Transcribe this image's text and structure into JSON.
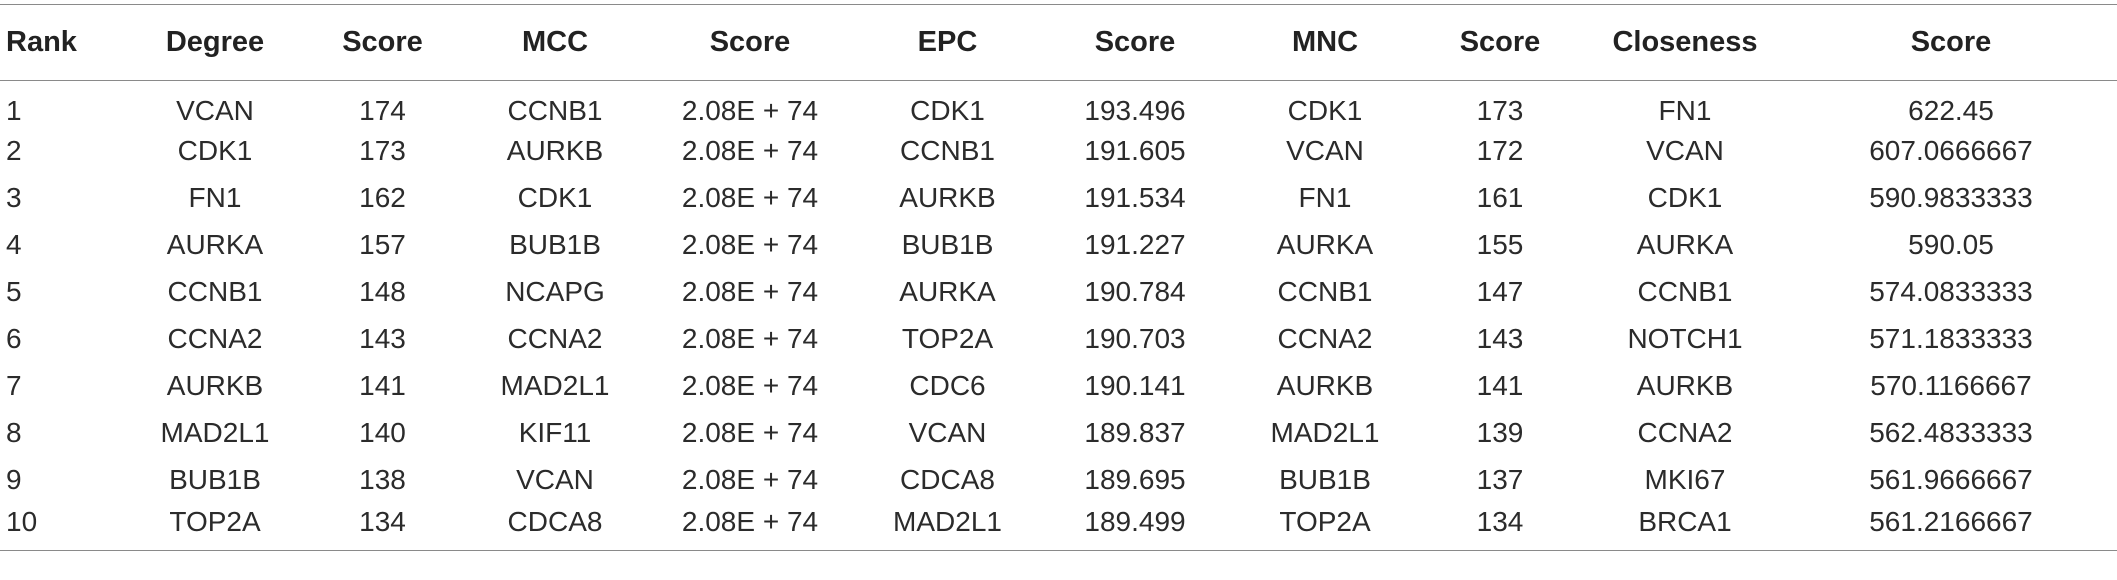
{
  "table": {
    "headers": [
      "Rank",
      "Degree",
      "Score",
      "MCC",
      "Score",
      "EPC",
      "Score",
      "MNC",
      "Score",
      "Closeness",
      "Score"
    ],
    "rows": [
      [
        "1",
        "VCAN",
        "174",
        "CCNB1",
        "2.08E + 74",
        "CDK1",
        "193.496",
        "CDK1",
        "173",
        "FN1",
        "622.45"
      ],
      [
        "2",
        "CDK1",
        "173",
        "AURKB",
        "2.08E + 74",
        "CCNB1",
        "191.605",
        "VCAN",
        "172",
        "VCAN",
        "607.0666667"
      ],
      [
        "3",
        "FN1",
        "162",
        "CDK1",
        "2.08E + 74",
        "AURKB",
        "191.534",
        "FN1",
        "161",
        "CDK1",
        "590.9833333"
      ],
      [
        "4",
        "AURKA",
        "157",
        "BUB1B",
        "2.08E + 74",
        "BUB1B",
        "191.227",
        "AURKA",
        "155",
        "AURKA",
        "590.05"
      ],
      [
        "5",
        "CCNB1",
        "148",
        "NCAPG",
        "2.08E + 74",
        "AURKA",
        "190.784",
        "CCNB1",
        "147",
        "CCNB1",
        "574.0833333"
      ],
      [
        "6",
        "CCNA2",
        "143",
        "CCNA2",
        "2.08E + 74",
        "TOP2A",
        "190.703",
        "CCNA2",
        "143",
        "NOTCH1",
        "571.1833333"
      ],
      [
        "7",
        "AURKB",
        "141",
        "MAD2L1",
        "2.08E + 74",
        "CDC6",
        "190.141",
        "AURKB",
        "141",
        "AURKB",
        "570.1166667"
      ],
      [
        "8",
        "MAD2L1",
        "140",
        "KIF11",
        "2.08E + 74",
        "VCAN",
        "189.837",
        "MAD2L1",
        "139",
        "CCNA2",
        "562.4833333"
      ],
      [
        "9",
        "BUB1B",
        "138",
        "VCAN",
        "2.08E + 74",
        "CDCA8",
        "189.695",
        "BUB1B",
        "137",
        "MKI67",
        "561.9666667"
      ],
      [
        "10",
        "TOP2A",
        "134",
        "CDCA8",
        "2.08E + 74",
        "MAD2L1",
        "189.499",
        "TOP2A",
        "134",
        "BRCA1",
        "561.2166667"
      ]
    ]
  }
}
